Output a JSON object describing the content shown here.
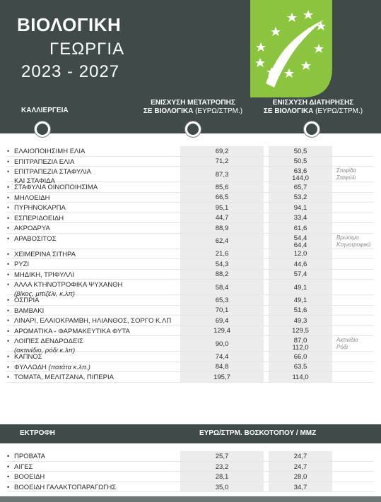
{
  "header": {
    "title_line1": "ΒΙΟΛΟΓΙΚΗ",
    "title_line2": "ΓΕΩΡΓΙΑ",
    "title_line3": "2023 - 2027",
    "col_crops": "ΚΑΛΛΙΕΡΓΕΙΑ",
    "col_conversion_line1": "ΕΝΙΣΧΥΣΗ ΜΕΤΑΤΡΟΠΗΣ",
    "col_conversion_line2": "ΣΕ ΒΙΟΛΟΓΙΚΑ",
    "col_conversion_unit": "(ΕΥΡΩ/ΣΤΡΜ.)",
    "col_maintenance_line1": "ΕΝΙΣΧΥΣΗ ΔΙΑΤΗΡΗΣΗΣ",
    "col_maintenance_line2": "ΣΕ ΒΙΟΛΟΓΙΚΑ",
    "col_maintenance_unit": "(ΕΥΡΩ/ΣΤΡΜ.)"
  },
  "logo": {
    "name": "eu-organic-leaf-logo",
    "color": "#8bc53f",
    "star_color": "#ffffff"
  },
  "colors": {
    "header_bg": "#3f4a49",
    "band": "#ececec",
    "bottom_bar": "#6b7574"
  },
  "crops": [
    {
      "name": "ΕΛΑΙΟΠΟΙΗΣΙΜΗ ΕΛΙΑ",
      "conversion": "69,2",
      "maintenance": "50,5"
    },
    {
      "name": "ΕΠΙΤΡΑΠΕΖΙΑ ΕΛΙΑ",
      "conversion": "71,2",
      "maintenance": "50,5"
    },
    {
      "name": "ΕΠΙΤΡΑΠΕΖΙΑ ΣΤΑΦΥΛΙΑ",
      "name2": "ΚΑΙ ΣΤΑΦΙΔΑ",
      "conversion": "87,3",
      "maintenance": "63,6",
      "maintenance2": "144,0",
      "note": "Σταφίδα",
      "note2": "Σταφύλι"
    },
    {
      "name": "ΣΤΑΦΥΛΙΑ ΟΙΝΟΠΟΙΗΣΙΜΑ",
      "conversion": "85,6",
      "maintenance": "65,7"
    },
    {
      "name": "ΜΗΛΟΕΙΔΗ",
      "conversion": "66,5",
      "maintenance": "53,2"
    },
    {
      "name": "ΠΥΡΗΝΟΚΑΡΠΑ",
      "conversion": "95,1",
      "maintenance": "94,1"
    },
    {
      "name": "ΕΣΠΕΡΙΔΟΕΙΔΗ",
      "conversion": "44,7",
      "maintenance": "33,4"
    },
    {
      "name": "ΑΚΡΟΔΡΥΑ",
      "conversion": "88,9",
      "maintenance": "61,6"
    },
    {
      "name": "ΑΡΑΒΟΣΙΤΟΣ",
      "conversion": "62,4",
      "maintenance": "54,4",
      "maintenance2": "64,4",
      "note": "Βρώσιμο",
      "note2": "Κτηνοτροφικό"
    },
    {
      "name": "ΧΕΙΜΕΡΙΝΑ ΣΙΤΗΡΑ",
      "conversion": "21,6",
      "maintenance": "12,0"
    },
    {
      "name": "ΡΥΖΙ",
      "conversion": "54,3",
      "maintenance": "44,6"
    },
    {
      "name": "ΜΗΔΙΚΗ, ΤΡΙΦΥΛΛΙ",
      "conversion": "88,2",
      "maintenance": "57,4"
    },
    {
      "name": "ΑΛΛΑ ΚΤΗΝΟΤΡΟΦΙΚΑ ΨΥΧΑΝΘΗ",
      "sub": "(βίκος, μπιζέλι, κ.λπ)",
      "conversion": "58,4",
      "maintenance": "49,1"
    },
    {
      "name": "ΟΣΠΡΙΑ",
      "conversion": "65,3",
      "maintenance": "49,1"
    },
    {
      "name": "ΒΑΜΒΑΚΙ",
      "conversion": "70,1",
      "maintenance": "51,6"
    },
    {
      "name": "ΛΙΝΑΡΙ, ΕΛΑΙΟΚΡΑΜΒΗ, ΗΛΙΑΝΘΟΣ, ΣΟΡΓΟ Κ.ΛΠ",
      "conversion": "69,4",
      "maintenance": "49,3"
    },
    {
      "name": "ΑΡΩΜΑΤΙΚΑ - ΦΑΡΜΑΚΕΥΤΙΚΑ ΦΥΤΑ",
      "conversion": "129,4",
      "maintenance": "129,5"
    },
    {
      "name": "ΛΟΙΠΕΣ ΔΕΝΔΡΩΔΕΙΣ",
      "sub": "(ακτινίδιο, ρόδι κ.λπ)",
      "conversion": "90,0",
      "maintenance": "87,0",
      "maintenance2": "112,0",
      "note": "Ακτινίδιο",
      "note2": "Ρόδι"
    },
    {
      "name": "ΚΑΠΝΟΣ",
      "conversion": "74,4",
      "maintenance": "66,0"
    },
    {
      "name": "ΦΥΛΛΩΔΗ",
      "name_italic": "(πατάτα κ.λπ.)",
      "conversion": "84,8",
      "maintenance": "63,5"
    },
    {
      "name": "ΤΟΜΑΤΑ, ΜΕΛΙΤΖΑΝΑ, ΠΙΠΕΡΙΑ",
      "conversion": "195,7",
      "maintenance": "114,0"
    }
  ],
  "livestock": {
    "title": "ΕΚΤΡΟΦΗ",
    "unit": "ΕΥΡΩ/ΣΤΡΜ. ΒΟΣΚΟΤΟΠΟΥ / ΜΜΖ",
    "rows": [
      {
        "name": "ΠΡΟΒΑΤΑ",
        "conversion": "25,7",
        "maintenance": "24,7"
      },
      {
        "name": "ΑΙΓΕΣ",
        "conversion": "23,2",
        "maintenance": "24,7"
      },
      {
        "name": "ΒΟΟΕΙΔΗ",
        "conversion": "28,1",
        "maintenance": "28,0"
      },
      {
        "name": "ΒΟΟΕΙΔΗ ΓΑΛΑΚΤΟΠΑΡΑΓΩΓΗΣ",
        "conversion": "35,0",
        "maintenance": "34,7"
      }
    ]
  }
}
